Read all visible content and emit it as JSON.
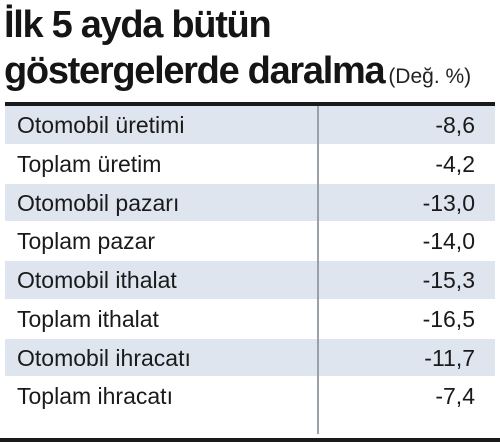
{
  "header": {
    "title_line1": "İlk 5 ayda bütün",
    "title_line2": "göstergelerde daralma",
    "unit": "(Değ. %)"
  },
  "chart_data": {
    "type": "table",
    "title": "İlk 5 ayda bütün göstergelerde daralma",
    "unit": "(Değ. %)",
    "rows": [
      {
        "label": "Otomobil üretimi",
        "value": "-8,6"
      },
      {
        "label": "Toplam üretim",
        "value": "-4,2"
      },
      {
        "label": "Otomobil pazarı",
        "value": "-13,0"
      },
      {
        "label": "Toplam pazar",
        "value": "-14,0"
      },
      {
        "label": "Otomobil ithalat",
        "value": "-15,3"
      },
      {
        "label": "Toplam ithalat",
        "value": "-16,5"
      },
      {
        "label": "Otomobil ihracatı",
        "value": "-11,7"
      },
      {
        "label": "Toplam ihracatı",
        "value": "-7,4"
      }
    ]
  },
  "colors": {
    "row_shaded": "#dfe5ee",
    "row_plain": "#ffffff",
    "divider": "#9aa0a8",
    "rule": "#1a1a1a"
  }
}
